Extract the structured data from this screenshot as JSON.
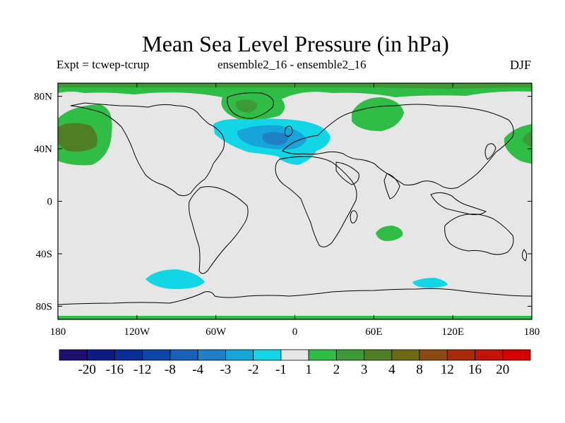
{
  "title": "Mean Sea Level Pressure (in hPa)",
  "subtitle_left": "Expt = tcwep-tcrup",
  "subtitle_center": "ensemble2_16 - ensemble2_16",
  "subtitle_right": "DJF",
  "map": {
    "projection": "cylindrical equidistant",
    "lon_range": [
      -180,
      180
    ],
    "lat_range": [
      -90,
      90
    ],
    "lon_ticks": [
      {
        "value": -180,
        "label": "180"
      },
      {
        "value": -120,
        "label": "120W"
      },
      {
        "value": -60,
        "label": "60W"
      },
      {
        "value": 0,
        "label": "0"
      },
      {
        "value": 60,
        "label": "60E"
      },
      {
        "value": 120,
        "label": "120E"
      },
      {
        "value": 180,
        "label": "180"
      }
    ],
    "lat_ticks": [
      {
        "value": 80,
        "label": "80N"
      },
      {
        "value": 40,
        "label": "40N"
      },
      {
        "value": 0,
        "label": "0"
      },
      {
        "value": -40,
        "label": "40S"
      },
      {
        "value": -80,
        "label": "80S"
      }
    ],
    "background_color": "#e6e6e6"
  },
  "colorbar": {
    "labels": [
      "-20",
      "-16",
      "-12",
      "-8",
      "-4",
      "-3",
      "-2",
      "-1",
      "1",
      "2",
      "3",
      "4",
      "8",
      "12",
      "16",
      "20"
    ],
    "colors": [
      "#1c0f6e",
      "#0b1d80",
      "#0a2e96",
      "#0d45a8",
      "#1761b8",
      "#1f80c8",
      "#17a4d8",
      "#12d6e6",
      "#e6e6e6",
      "#2fbd46",
      "#3d9a36",
      "#4f7f24",
      "#6e6a14",
      "#8c4a10",
      "#a82c0c",
      "#c21408",
      "#d60000"
    ]
  }
}
